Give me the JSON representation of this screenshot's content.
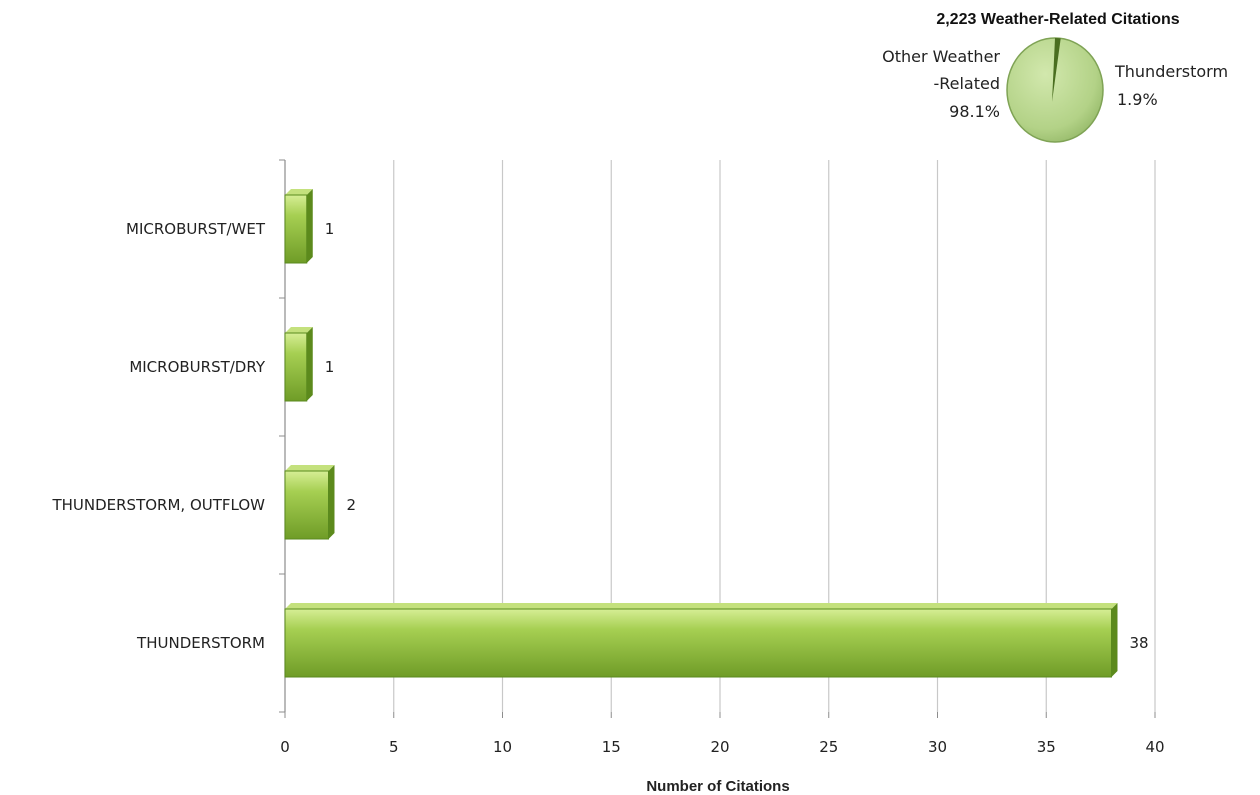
{
  "page": {
    "title": ""
  },
  "chart_data": [
    {
      "type": "bar",
      "orientation": "horizontal",
      "categories": [
        "MICROBURST/WET",
        "MICROBURST/DRY",
        "THUNDERSTORM, OUTFLOW",
        "THUNDERSTORM"
      ],
      "values": [
        1,
        1,
        2,
        38
      ],
      "data_labels": [
        "1",
        "1",
        "2",
        "38"
      ],
      "xlabel": "Number of Citations",
      "ylabel": "",
      "xlim": [
        0,
        40
      ],
      "xticks": [
        0,
        5,
        10,
        15,
        20,
        25,
        30,
        35,
        40
      ],
      "xtick_labels": [
        "0",
        "5",
        "10",
        "15",
        "20",
        "25",
        "30",
        "35",
        "40"
      ],
      "grid": "vertical",
      "legend": "none",
      "colors": {
        "bar": "#8dba3a",
        "bar_dark": "#5c8a1c",
        "bar_light": "#c4e17d",
        "grid": "#c8c8c8",
        "axis": "#8c8c8c"
      }
    },
    {
      "type": "pie",
      "title": "2,223 Weather-Related Citations",
      "slices": [
        {
          "label_lines": [
            "Other Weather",
            "-Related",
            "98.1%"
          ],
          "value": 98.1
        },
        {
          "label_lines": [
            "Thunderstorm",
            "1.9%"
          ],
          "value": 1.9
        }
      ],
      "colors": {
        "main": "#b5d48a",
        "slice": "#4a6e20",
        "edge": "#7fa355"
      }
    }
  ]
}
